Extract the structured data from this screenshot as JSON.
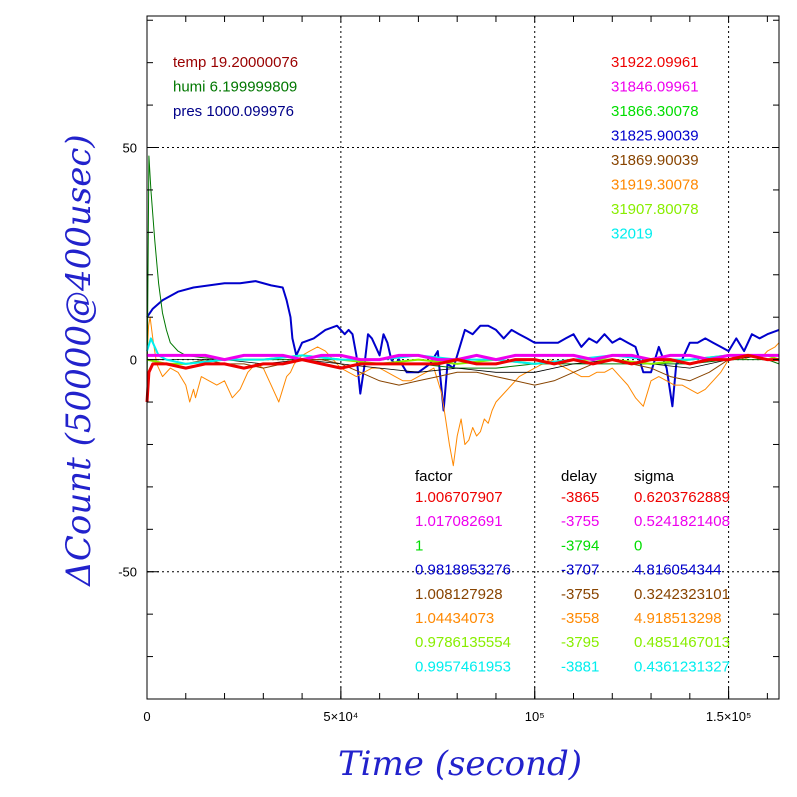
{
  "chart_data": {
    "type": "line",
    "xlabel": "Time (second)",
    "ylabel": "ΔCount (50000@400usec)",
    "xlim": [
      0,
      163000
    ],
    "ylim": [
      -80,
      81
    ],
    "x_ticks": [
      {
        "value": 0,
        "label": "0"
      },
      {
        "value": 50000,
        "label": "5×10⁴"
      },
      {
        "value": 100000,
        "label": "10⁵"
      },
      {
        "value": 150000,
        "label": "1.5×10⁵"
      }
    ],
    "y_ticks": [
      {
        "value": 50,
        "label": "50"
      },
      {
        "value": 0,
        "label": "0"
      },
      {
        "value": -50,
        "label": "-50"
      }
    ],
    "grid": true,
    "env_labels": [
      {
        "text": "temp 19.20000076",
        "color": "#990000"
      },
      {
        "text": "humi 6.199999809",
        "color": "#007700"
      },
      {
        "text": "pres 1000.099976",
        "color": "#000088"
      }
    ],
    "mean_labels": [
      {
        "text": "31922.09961",
        "color": "#ee0000"
      },
      {
        "text": "31846.09961",
        "color": "#ee00ee"
      },
      {
        "text": "31866.30078",
        "color": "#00dd00"
      },
      {
        "text": "31825.90039",
        "color": "#0000cc"
      },
      {
        "text": "31869.90039",
        "color": "#884400"
      },
      {
        "text": "31919.30078",
        "color": "#ff8800"
      },
      {
        "text": "31907.80078",
        "color": "#88ee00"
      },
      {
        "text": "32019",
        "color": "#00eeee"
      }
    ],
    "table": {
      "headers": [
        "factor",
        "delay",
        "sigma"
      ],
      "rows": [
        {
          "factor": "1.006707907",
          "delay": "-3865",
          "sigma": "0.6203762889",
          "color": "#ee0000"
        },
        {
          "factor": "1.017082691",
          "delay": "-3755",
          "sigma": "0.5241821408",
          "color": "#ee00ee"
        },
        {
          "factor": "1",
          "delay": "-3794",
          "sigma": "0",
          "color": "#00dd00"
        },
        {
          "factor": "0.9818953276",
          "delay": "-3707",
          "sigma": "4.816054344",
          "color": "#0000cc"
        },
        {
          "factor": "1.008127928",
          "delay": "-3755",
          "sigma": "0.3242323101",
          "color": "#884400"
        },
        {
          "factor": "1.04434073",
          "delay": "-3558",
          "sigma": "4.918513298",
          "color": "#ff8800"
        },
        {
          "factor": "0.9786135554",
          "delay": "-3795",
          "sigma": "0.4851467013",
          "color": "#88ee00"
        },
        {
          "factor": "0.9957461953",
          "delay": "-3881",
          "sigma": "0.4361231327",
          "color": "#00eeee"
        }
      ]
    },
    "series": [
      {
        "color": "#0000cc",
        "width": 2,
        "x": [
          0,
          1500,
          4000,
          8000,
          12000,
          16000,
          20000,
          24000,
          28000,
          32000,
          35000,
          36000,
          37000,
          37500,
          38500,
          40000,
          43000,
          46000,
          49000,
          51000,
          52000,
          53000,
          54000,
          55000,
          56000,
          57000,
          58000,
          59000,
          60000,
          61000,
          62000,
          63000,
          64000,
          65000,
          67000,
          70000,
          73000,
          75000,
          76500,
          77500,
          79000,
          80000,
          82000,
          84000,
          86000,
          88000,
          90000,
          92000,
          94000,
          96000,
          98000,
          100000,
          102000,
          104000,
          106000,
          108000,
          110000,
          112000,
          114000,
          116000,
          118000,
          120000,
          122000,
          124000,
          126000,
          128000,
          130000,
          132000,
          134000,
          135500,
          136500,
          138000,
          140000,
          142000,
          144000,
          146000,
          148000,
          150000,
          152000,
          154000,
          156000,
          158000,
          160000,
          163000
        ],
        "y": [
          10,
          12,
          14,
          16,
          17,
          17.5,
          18,
          18,
          18.5,
          17.5,
          17,
          14,
          10,
          5,
          1,
          4,
          5,
          7,
          8,
          6,
          7,
          6,
          1,
          -8,
          -2,
          6,
          5,
          3,
          1,
          6,
          4,
          0,
          -1,
          0,
          -3,
          -3,
          -1,
          2,
          -12,
          -1,
          -2,
          1,
          7,
          6,
          8,
          8,
          7,
          5,
          7,
          6,
          5,
          4,
          4,
          4,
          4,
          5,
          6,
          3,
          5,
          4,
          6,
          4,
          5,
          4,
          3,
          -3,
          -3,
          3,
          -2,
          -11,
          -1,
          0,
          4,
          4,
          5,
          4,
          3,
          2,
          5,
          2,
          6,
          5,
          6,
          7
        ]
      },
      {
        "color": "#ff8800",
        "width": 1,
        "x": [
          0,
          400,
          800,
          1500,
          2500,
          4000,
          6000,
          8000,
          10000,
          11000,
          12000,
          12500,
          14000,
          16000,
          18000,
          20000,
          22000,
          24000,
          26000,
          28000,
          30000,
          32000,
          34000,
          35000,
          36000,
          37000,
          38000,
          40000,
          42000,
          44000,
          46000,
          48000,
          50000,
          52000,
          54000,
          56000,
          58000,
          60000,
          62000,
          64000,
          66000,
          68000,
          70000,
          72000,
          74000,
          75000,
          76000,
          77000,
          78000,
          79000,
          80000,
          81000,
          82000,
          83000,
          84000,
          85000,
          86000,
          87000,
          88000,
          89000,
          90000,
          92000,
          94000,
          96000,
          98000,
          100000,
          102000,
          104000,
          106000,
          108000,
          110000,
          112000,
          114000,
          116000,
          118000,
          120000,
          122000,
          124000,
          126000,
          128000,
          130000,
          132000,
          134000,
          136000,
          138000,
          140000,
          142000,
          144000,
          146000,
          148000,
          150000,
          152000,
          154000,
          156000,
          158000,
          160000,
          162000,
          163000
        ],
        "y": [
          0,
          8,
          10,
          5,
          -1,
          -4,
          -2,
          -3,
          -6,
          -10,
          -7,
          -9,
          -4,
          -5,
          -6,
          -5,
          -9,
          -7,
          -3,
          -1,
          -2,
          -6,
          -10,
          -7,
          -4,
          -3,
          -1,
          1,
          2,
          3,
          2,
          0,
          -2,
          -3,
          -4,
          -3,
          -2,
          -2,
          -3,
          -4,
          -5,
          -5,
          -4,
          -3,
          -2,
          -5,
          -8,
          -14,
          -20,
          -25,
          -18,
          -14,
          -20,
          -19,
          -16,
          -18,
          -17,
          -14,
          -15,
          -12,
          -10,
          -8,
          -6,
          -4,
          -3,
          -2,
          -1,
          0,
          -1,
          -2,
          -3,
          -4,
          -4,
          -3,
          -3,
          -2,
          -4,
          -6,
          -9,
          -11,
          -5,
          -4,
          -5,
          -6,
          -6,
          -7,
          -8,
          -7,
          -5,
          -3,
          0,
          1,
          0,
          1,
          0,
          2,
          3,
          4
        ]
      },
      {
        "color": "#007700",
        "width": 1,
        "x": [
          0,
          500,
          1000,
          2000,
          3000,
          4000,
          5000,
          6000,
          8000,
          10000,
          14000,
          20000,
          30000,
          40000,
          50000,
          60000,
          70000,
          80000,
          90000,
          100000,
          110000,
          120000,
          130000,
          140000,
          150000,
          160000,
          163000
        ],
        "y": [
          -10,
          48,
          40,
          28,
          18,
          11,
          7,
          4,
          2,
          1,
          0.5,
          0,
          0,
          0,
          0,
          -1,
          -1,
          -2,
          -2,
          -1,
          -1,
          -1,
          -1,
          -1,
          0,
          0,
          -1
        ]
      },
      {
        "color": "#884400",
        "width": 1,
        "x": [
          0,
          5000,
          10000,
          15000,
          20000,
          25000,
          30000,
          35000,
          40000,
          45000,
          50000,
          55000,
          60000,
          65000,
          70000,
          75000,
          80000,
          85000,
          90000,
          95000,
          100000,
          105000,
          110000,
          115000,
          120000,
          125000,
          130000,
          135000,
          140000,
          145000,
          150000,
          155000,
          160000,
          163000
        ],
        "y": [
          0,
          0,
          -1,
          0,
          -1,
          -1,
          -2,
          -1,
          0,
          0,
          -1,
          -3,
          -5,
          -6,
          -5,
          -4,
          -3,
          -3,
          -4,
          -5,
          -6,
          -5,
          -3,
          -1,
          0,
          -1,
          -2,
          -4,
          -5,
          -3,
          0,
          1,
          1,
          0
        ]
      },
      {
        "color": "#000000",
        "width": 0.8,
        "x": [
          0,
          10000,
          20000,
          30000,
          40000,
          50000,
          60000,
          70000,
          80000,
          90000,
          100000,
          110000,
          120000,
          130000,
          140000,
          150000,
          160000,
          163000
        ],
        "y": [
          0,
          0,
          0,
          -1,
          0,
          -1,
          -2,
          -3,
          -2,
          -3,
          -3,
          -1,
          0,
          -1,
          -2,
          0,
          1,
          1
        ]
      },
      {
        "color": "#88ee00",
        "width": 2,
        "x": [
          0,
          5000,
          10000,
          20000,
          30000,
          40000,
          50000,
          60000,
          70000,
          80000,
          90000,
          100000,
          110000,
          120000,
          130000,
          140000,
          150000,
          160000,
          163000
        ],
        "y": [
          0,
          -1,
          -1,
          0,
          0,
          1,
          0,
          -1,
          0,
          -1,
          0,
          -1,
          0,
          0,
          -1,
          0,
          1,
          1,
          0
        ]
      },
      {
        "color": "#00eeee",
        "width": 2,
        "x": [
          0,
          1000,
          3000,
          5000,
          10000,
          20000,
          30000,
          40000,
          50000,
          60000,
          70000,
          80000,
          90000,
          100000,
          110000,
          120000,
          130000,
          140000,
          150000,
          160000,
          163000
        ],
        "y": [
          2,
          5,
          1,
          0,
          -1,
          0,
          0,
          1,
          0,
          0,
          1,
          0,
          0,
          -1,
          0,
          1,
          0,
          0,
          1,
          1,
          1
        ]
      },
      {
        "color": "#ee00ee",
        "width": 3,
        "x": [
          0,
          5000,
          10000,
          15000,
          20000,
          25000,
          30000,
          35000,
          40000,
          45000,
          50000,
          55000,
          60000,
          65000,
          70000,
          75000,
          80000,
          85000,
          90000,
          95000,
          100000,
          105000,
          110000,
          115000,
          120000,
          125000,
          130000,
          135000,
          140000,
          145000,
          150000,
          155000,
          160000,
          163000
        ],
        "y": [
          1,
          1,
          1,
          1,
          0,
          1,
          1,
          1,
          0,
          1,
          1,
          0,
          0,
          1,
          1,
          0,
          0,
          1,
          0,
          1,
          1,
          1,
          1,
          0,
          1,
          1,
          0,
          1,
          1,
          0,
          1,
          1,
          1,
          1
        ]
      },
      {
        "color": "#ee0000",
        "width": 3,
        "x": [
          0,
          500,
          1500,
          5000,
          10000,
          15000,
          20000,
          25000,
          30000,
          35000,
          40000,
          45000,
          50000,
          55000,
          60000,
          65000,
          70000,
          75000,
          80000,
          85000,
          90000,
          95000,
          100000,
          105000,
          110000,
          115000,
          120000,
          125000,
          130000,
          135000,
          140000,
          145000,
          150000,
          155000,
          160000,
          163000
        ],
        "y": [
          -10,
          -3,
          -1,
          -1,
          -2,
          -1,
          -1,
          -2,
          -1,
          -1,
          0,
          -1,
          -2,
          -1,
          -1,
          -1,
          -1,
          -1,
          0,
          -1,
          -1,
          0,
          0,
          -1,
          0,
          -1,
          0,
          -1,
          0,
          0,
          -1,
          0,
          0,
          1,
          0,
          0
        ]
      }
    ]
  }
}
